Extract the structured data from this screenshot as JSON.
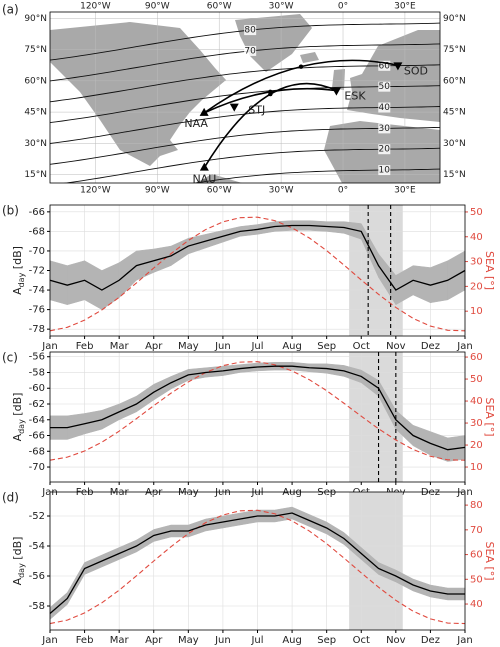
{
  "chart_data": [
    {
      "type": "map",
      "label": "(a)",
      "xlim": [
        -142,
        47
      ],
      "ylim": [
        11,
        93
      ],
      "xticks": [
        {
          "value": -120,
          "label": "120°W"
        },
        {
          "value": -90,
          "label": "90°W"
        },
        {
          "value": -60,
          "label": "60°W"
        },
        {
          "value": -30,
          "label": "30°W"
        },
        {
          "value": 0,
          "label": "0°"
        },
        {
          "value": 30,
          "label": "30°E"
        }
      ],
      "yticks": [
        {
          "value": 15,
          "label": "15°N"
        },
        {
          "value": 30,
          "label": "30°N"
        },
        {
          "value": 45,
          "label": "45°N"
        },
        {
          "value": 60,
          "label": "60°N"
        },
        {
          "value": 75,
          "label": "75°N"
        },
        {
          "value": 90,
          "label": "90°N"
        }
      ],
      "contours": [
        10,
        20,
        30,
        40,
        50,
        60,
        70,
        80
      ],
      "stations": [
        {
          "name": "NAA",
          "lon": -67.3,
          "lat": 44.6,
          "marker": "^"
        },
        {
          "name": "NAU",
          "lon": -67.2,
          "lat": 18.4,
          "marker": "^"
        },
        {
          "name": "STJ",
          "lon": -52.7,
          "lat": 47.6,
          "marker": "v"
        },
        {
          "name": "ESK",
          "lon": -3.2,
          "lat": 55.3,
          "marker": "v"
        },
        {
          "name": "SOD",
          "lon": 26.6,
          "lat": 67.4,
          "marker": "v"
        }
      ]
    },
    {
      "type": "line",
      "label": "(b)",
      "ylabel": [
        "A",
        "day",
        " [dB]"
      ],
      "y2label": "SEA [°]",
      "x": [
        0,
        0.5,
        1,
        1.5,
        2,
        2.5,
        3,
        3.5,
        4,
        4.5,
        5,
        5.5,
        6,
        6.5,
        7,
        7.5,
        8,
        8.5,
        9,
        9.5,
        10,
        10.5,
        11,
        11.5,
        12
      ],
      "values": [
        -73,
        -73.5,
        -73,
        -74,
        -73,
        -71.5,
        -71,
        -70.5,
        -69.5,
        -69,
        -68.5,
        -68,
        -67.8,
        -67.5,
        -67.4,
        -67.4,
        -67.5,
        -67.6,
        -68,
        -71.5,
        -74,
        -73,
        -73.5,
        -73,
        -72
      ],
      "upper": [
        -71,
        -71.5,
        -71,
        -72,
        -71.2,
        -70,
        -69.8,
        -69.5,
        -68.7,
        -68.3,
        -67.9,
        -67.5,
        -67.3,
        -67,
        -66.9,
        -66.9,
        -67,
        -67,
        -67.2,
        -70.3,
        -72.5,
        -71.5,
        -71.7,
        -71,
        -70
      ],
      "lower": [
        -75,
        -75.5,
        -75,
        -76,
        -74.8,
        -73,
        -72.2,
        -71.5,
        -70.3,
        -69.7,
        -69.1,
        -68.5,
        -68.3,
        -68,
        -67.9,
        -67.9,
        -68,
        -68.2,
        -68.8,
        -72.7,
        -75.5,
        -74.5,
        -75.3,
        -75,
        -74
      ],
      "y2values": [
        2.1,
        3.5,
        6.4,
        10.5,
        15.6,
        21.4,
        27.4,
        33.2,
        38.5,
        42.9,
        46.0,
        47.7,
        47.9,
        46.5,
        43.6,
        39.5,
        34.4,
        28.6,
        22.6,
        16.8,
        11.5,
        7.1,
        4.0,
        2.3,
        2.1
      ],
      "color": "#000000",
      "band_color": "#b4b4b4",
      "y2color": "#e04a3f",
      "shade": [
        8.65,
        10.2
      ],
      "vlines": [
        9.2,
        9.85
      ],
      "xlim": [
        0,
        12
      ],
      "xticks": [
        {
          "value": 0,
          "label": "Jan"
        },
        {
          "value": 1,
          "label": "Feb"
        },
        {
          "value": 2,
          "label": "Mar"
        },
        {
          "value": 3,
          "label": "Apr"
        },
        {
          "value": 4,
          "label": "May"
        },
        {
          "value": 5,
          "label": "Jun"
        },
        {
          "value": 6,
          "label": "Jul"
        },
        {
          "value": 7,
          "label": "Aug"
        },
        {
          "value": 8,
          "label": "Sep"
        },
        {
          "value": 9,
          "label": "Oct"
        },
        {
          "value": 10,
          "label": "Nov"
        },
        {
          "value": 11,
          "label": "Dez"
        },
        {
          "value": 12,
          "label": "Jan"
        }
      ],
      "ylim": [
        -78.7,
        -65.3
      ],
      "yticks": [
        -78,
        -76,
        -74,
        -72,
        -70,
        -68,
        -66
      ],
      "y2lim": [
        0,
        52.8
      ],
      "y2ticks": [
        10,
        20,
        30,
        40,
        50
      ],
      "grid": true
    },
    {
      "type": "line",
      "label": "(c)",
      "ylabel": [
        "A",
        "day",
        " [dB]"
      ],
      "y2label": "SEA [°]",
      "x": [
        0,
        0.5,
        1,
        1.5,
        2,
        2.5,
        3,
        3.5,
        4,
        4.5,
        5,
        5.5,
        6,
        6.5,
        7,
        7.5,
        8,
        8.5,
        9,
        9.5,
        10,
        10.5,
        11,
        11.5,
        12
      ],
      "values": [
        -65,
        -65,
        -64.5,
        -64,
        -63,
        -62,
        -60.5,
        -59.3,
        -58.3,
        -58,
        -57.8,
        -57.5,
        -57.3,
        -57.2,
        -57.2,
        -57.4,
        -57.5,
        -57.8,
        -58.5,
        -60,
        -64,
        -66,
        -67,
        -67.8,
        -67.5
      ],
      "upper": [
        -63.5,
        -63.5,
        -63.2,
        -62.8,
        -62,
        -61,
        -59.5,
        -58.5,
        -57.6,
        -57.4,
        -57.2,
        -57,
        -56.8,
        -56.7,
        -56.7,
        -56.9,
        -56.9,
        -57.1,
        -57.7,
        -59,
        -62.8,
        -64.7,
        -65.5,
        -66.3,
        -66
      ],
      "lower": [
        -66.5,
        -66.5,
        -65.8,
        -65.2,
        -64,
        -63,
        -61.5,
        -60.1,
        -59,
        -58.6,
        -58.4,
        -58,
        -57.8,
        -57.7,
        -57.7,
        -57.9,
        -58.1,
        -58.5,
        -59.3,
        -61,
        -65.2,
        -67.3,
        -68.5,
        -69.3,
        -69
      ],
      "y2values": [
        13.1,
        14.5,
        17.3,
        21.3,
        26.3,
        32.0,
        37.9,
        43.6,
        48.7,
        53.0,
        56.1,
        57.7,
        57.9,
        56.5,
        53.7,
        49.7,
        44.7,
        39.0,
        33.1,
        27.4,
        22.3,
        18.0,
        14.9,
        13.3,
        13.1
      ],
      "color": "#000000",
      "band_color": "#b4b4b4",
      "y2color": "#e04a3f",
      "shade": [
        8.65,
        10.2
      ],
      "vlines": [
        9.5,
        10.0
      ],
      "xlim": [
        0,
        12
      ],
      "xticks": [
        {
          "value": 0,
          "label": "Jan"
        },
        {
          "value": 1,
          "label": "Feb"
        },
        {
          "value": 2,
          "label": "Mar"
        },
        {
          "value": 3,
          "label": "Apr"
        },
        {
          "value": 4,
          "label": "May"
        },
        {
          "value": 5,
          "label": "Jun"
        },
        {
          "value": 6,
          "label": "Jul"
        },
        {
          "value": 7,
          "label": "Aug"
        },
        {
          "value": 8,
          "label": "Sep"
        },
        {
          "value": 9,
          "label": "Oct"
        },
        {
          "value": 10,
          "label": "Nov"
        },
        {
          "value": 11,
          "label": "Dez"
        },
        {
          "value": 12,
          "label": "Jan"
        }
      ],
      "ylim": [
        -71.9,
        -55.4
      ],
      "yticks": [
        -70,
        -68,
        -66,
        -64,
        -62,
        -60,
        -58,
        -56
      ],
      "y2lim": [
        3.2,
        62.3
      ],
      "y2ticks": [
        10,
        20,
        30,
        40,
        50,
        60
      ],
      "grid": true
    },
    {
      "type": "line",
      "label": "(d)",
      "ylabel": [
        "A",
        "day",
        " [dB]"
      ],
      "y2label": "SEA [°]",
      "x": [
        0,
        0.5,
        1,
        1.5,
        2,
        2.5,
        3,
        3.5,
        4,
        4.5,
        5,
        5.5,
        6,
        6.5,
        7,
        7.5,
        8,
        8.5,
        9,
        9.5,
        10,
        10.5,
        11,
        11.5,
        12
      ],
      "values": [
        -58.5,
        -57.5,
        -55.5,
        -55,
        -54.5,
        -54,
        -53.3,
        -53,
        -53,
        -52.6,
        -52.4,
        -52.2,
        -52,
        -52,
        -51.8,
        -52.3,
        -52.8,
        -53.5,
        -54.5,
        -55.5,
        -56,
        -56.6,
        -57,
        -57.2,
        -57.2
      ],
      "upper": [
        -58.1,
        -57.1,
        -55.1,
        -54.6,
        -54.1,
        -53.6,
        -52.9,
        -52.6,
        -52.6,
        -52.2,
        -52,
        -51.8,
        -51.6,
        -51.6,
        -51.4,
        -51.9,
        -52.4,
        -53.1,
        -54.1,
        -55.1,
        -55.6,
        -56.2,
        -56.6,
        -56.8,
        -56.8
      ],
      "lower": [
        -58.9,
        -57.9,
        -55.9,
        -55.4,
        -54.9,
        -54.4,
        -53.7,
        -53.4,
        -53.4,
        -53,
        -52.8,
        -52.6,
        -52.4,
        -52.4,
        -52.2,
        -52.7,
        -53.2,
        -53.9,
        -54.9,
        -55.9,
        -56.4,
        -57,
        -57.4,
        -57.6,
        -57.6
      ],
      "y2values": [
        32.1,
        33.5,
        36.4,
        40.5,
        45.6,
        51.4,
        57.4,
        63.2,
        68.5,
        72.9,
        76.0,
        77.7,
        77.9,
        76.5,
        73.6,
        69.5,
        64.4,
        58.6,
        52.6,
        46.8,
        41.5,
        37.1,
        34.0,
        32.3,
        32.1
      ],
      "color": "#000000",
      "band_color": "#b4b4b4",
      "y2color": "#e04a3f",
      "shade": [
        8.65,
        10.2
      ],
      "vlines": [],
      "xlim": [
        0,
        12
      ],
      "xticks": [
        {
          "value": 0,
          "label": "Jan"
        },
        {
          "value": 1,
          "label": "Feb"
        },
        {
          "value": 2,
          "label": "Mar"
        },
        {
          "value": 3,
          "label": "Apr"
        },
        {
          "value": 4,
          "label": "May"
        },
        {
          "value": 5,
          "label": "Jun"
        },
        {
          "value": 6,
          "label": "Jul"
        },
        {
          "value": 7,
          "label": "Aug"
        },
        {
          "value": 8,
          "label": "Sep"
        },
        {
          "value": 9,
          "label": "Oct"
        },
        {
          "value": 10,
          "label": "Nov"
        },
        {
          "value": 11,
          "label": "Dez"
        },
        {
          "value": 12,
          "label": "Jan"
        }
      ],
      "ylim": [
        -59.6,
        -50.4
      ],
      "yticks": [
        -58,
        -56,
        -54,
        -52
      ],
      "y2lim": [
        29.5,
        85.3
      ],
      "y2ticks": [
        40,
        50,
        60,
        70,
        80
      ],
      "grid": true
    }
  ]
}
